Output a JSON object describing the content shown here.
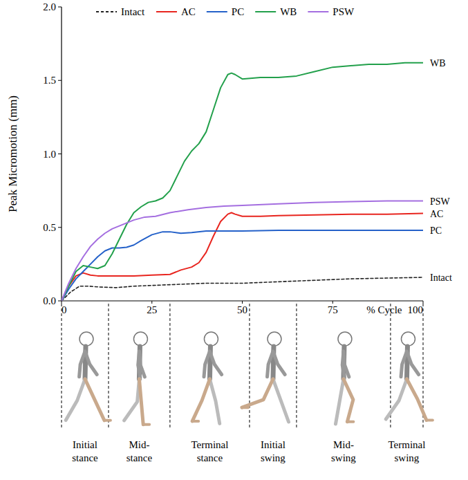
{
  "chart_data": {
    "type": "line",
    "y_label": "Peak Micromotion (mm)",
    "x_label": "% Cycle",
    "xlim": [
      0,
      100
    ],
    "xticks": [
      0,
      25,
      50,
      75,
      100
    ],
    "ylim": [
      0,
      2.0
    ],
    "yticks": [
      {
        "value": 0,
        "label": "0.0"
      },
      {
        "value": 0.5,
        "label": "0.5"
      },
      {
        "value": 1.0,
        "label": "1.0"
      },
      {
        "value": 1.5,
        "label": "1.5"
      },
      {
        "value": 2.0,
        "label": "2.0"
      }
    ],
    "legend": "top",
    "series": [
      {
        "name": "Intact",
        "color": "#222222",
        "line_style": "dashed",
        "x": [
          0,
          2.5,
          5,
          7.5,
          10,
          15,
          20,
          30,
          40,
          50,
          60,
          70,
          80,
          90,
          100
        ],
        "values": [
          0,
          0.06,
          0.1,
          0.1,
          0.095,
          0.09,
          0.1,
          0.11,
          0.12,
          0.12,
          0.13,
          0.14,
          0.15,
          0.155,
          0.16
        ]
      },
      {
        "name": "AC",
        "color": "#e8251f",
        "line_style": "solid",
        "x": [
          0,
          2,
          4,
          6,
          8,
          10,
          15,
          20,
          25,
          30,
          33,
          36,
          38,
          40,
          42,
          44,
          46,
          47,
          48,
          50,
          55,
          60,
          70,
          80,
          90,
          100
        ],
        "values": [
          0,
          0.1,
          0.17,
          0.19,
          0.175,
          0.17,
          0.17,
          0.17,
          0.175,
          0.18,
          0.21,
          0.23,
          0.26,
          0.33,
          0.44,
          0.54,
          0.59,
          0.6,
          0.59,
          0.575,
          0.575,
          0.58,
          0.585,
          0.59,
          0.59,
          0.595
        ]
      },
      {
        "name": "PC",
        "color": "#2461c9",
        "line_style": "solid",
        "x": [
          0,
          2,
          4,
          6,
          8,
          10,
          12,
          14,
          16,
          18,
          20,
          22,
          25,
          28,
          30,
          33,
          36,
          40,
          45,
          50,
          60,
          70,
          80,
          90,
          100
        ],
        "values": [
          0,
          0.08,
          0.15,
          0.2,
          0.25,
          0.3,
          0.34,
          0.36,
          0.36,
          0.365,
          0.38,
          0.41,
          0.45,
          0.47,
          0.47,
          0.46,
          0.465,
          0.475,
          0.475,
          0.475,
          0.48,
          0.48,
          0.48,
          0.48,
          0.48
        ]
      },
      {
        "name": "WB",
        "color": "#22a04b",
        "line_style": "solid",
        "x": [
          0,
          2,
          4,
          6,
          8,
          10,
          12,
          14,
          16,
          18,
          20,
          22,
          24,
          26,
          28,
          30,
          32,
          34,
          36,
          38,
          40,
          42,
          44,
          46,
          47,
          48,
          50,
          55,
          60,
          65,
          70,
          75,
          80,
          85,
          90,
          95,
          100
        ],
        "values": [
          0,
          0.1,
          0.2,
          0.24,
          0.23,
          0.22,
          0.24,
          0.32,
          0.42,
          0.52,
          0.6,
          0.64,
          0.67,
          0.68,
          0.7,
          0.75,
          0.85,
          0.95,
          1.02,
          1.07,
          1.15,
          1.3,
          1.45,
          1.54,
          1.55,
          1.54,
          1.51,
          1.52,
          1.52,
          1.53,
          1.56,
          1.59,
          1.6,
          1.61,
          1.61,
          1.62,
          1.62
        ]
      },
      {
        "name": "PSW",
        "color": "#a46ee0",
        "line_style": "solid",
        "x": [
          0,
          2,
          4,
          6,
          8,
          10,
          12,
          14,
          16,
          18,
          20,
          23,
          26,
          30,
          35,
          40,
          45,
          50,
          60,
          70,
          80,
          90,
          100
        ],
        "values": [
          0,
          0.12,
          0.22,
          0.3,
          0.37,
          0.42,
          0.46,
          0.49,
          0.51,
          0.53,
          0.55,
          0.57,
          0.575,
          0.6,
          0.62,
          0.635,
          0.645,
          0.65,
          0.66,
          0.67,
          0.675,
          0.68,
          0.68
        ]
      }
    ],
    "phases": {
      "boundaries": [
        0,
        13,
        30,
        52,
        65,
        91,
        100
      ],
      "labels": [
        "Initial stance",
        "Mid-stance",
        "Terminal stance",
        "Initial swing",
        "Mid-swing",
        "Terminal swing"
      ]
    }
  }
}
